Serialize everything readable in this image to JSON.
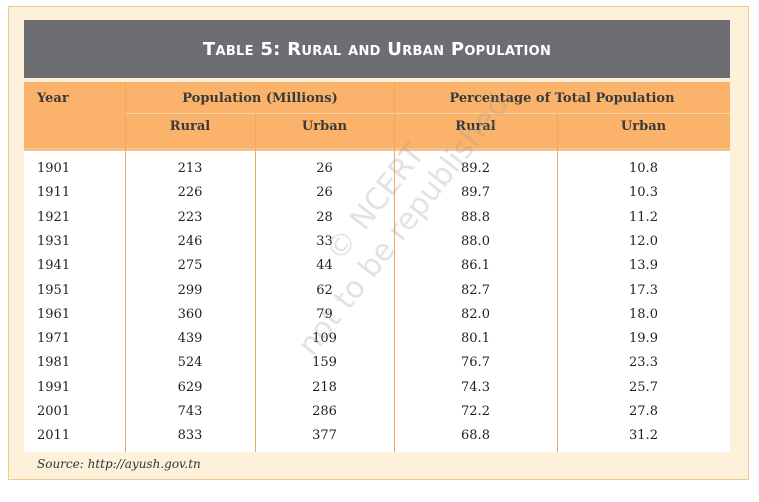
{
  "table": {
    "title": "Table 5: Rural and Urban Population",
    "headers": {
      "year": "Year",
      "population_group": "Population (Millions)",
      "percentage_group": "Percentage of Total Population",
      "pop_rural": "Rural",
      "pop_urban": "Urban",
      "pct_rural": "Rural",
      "pct_urban": "Urban"
    },
    "rows": [
      {
        "year": "1901",
        "pop_rural": "213",
        "pop_urban": "26",
        "pct_rural": "89.2",
        "pct_urban": "10.8"
      },
      {
        "year": "1911",
        "pop_rural": "226",
        "pop_urban": "26",
        "pct_rural": "89.7",
        "pct_urban": "10.3"
      },
      {
        "year": "1921",
        "pop_rural": "223",
        "pop_urban": "28",
        "pct_rural": "88.8",
        "pct_urban": "11.2"
      },
      {
        "year": "1931",
        "pop_rural": "246",
        "pop_urban": "33",
        "pct_rural": "88.0",
        "pct_urban": "12.0"
      },
      {
        "year": "1941",
        "pop_rural": "275",
        "pop_urban": "44",
        "pct_rural": "86.1",
        "pct_urban": "13.9"
      },
      {
        "year": "1951",
        "pop_rural": "299",
        "pop_urban": "62",
        "pct_rural": "82.7",
        "pct_urban": "17.3"
      },
      {
        "year": "1961",
        "pop_rural": "360",
        "pop_urban": "79",
        "pct_rural": "82.0",
        "pct_urban": "18.0"
      },
      {
        "year": "1971",
        "pop_rural": "439",
        "pop_urban": "109",
        "pct_rural": "80.1",
        "pct_urban": "19.9"
      },
      {
        "year": "1981",
        "pop_rural": "524",
        "pop_urban": "159",
        "pct_rural": "76.7",
        "pct_urban": "23.3"
      },
      {
        "year": "1991",
        "pop_rural": "629",
        "pop_urban": "218",
        "pct_rural": "74.3",
        "pct_urban": "25.7"
      },
      {
        "year": "2001",
        "pop_rural": "743",
        "pop_urban": "286",
        "pct_rural": "72.2",
        "pct_urban": "27.8"
      },
      {
        "year": "2011",
        "pop_rural": "833",
        "pop_urban": "377",
        "pct_rural": "68.8",
        "pct_urban": "31.2"
      }
    ],
    "source": "Source: http://ayush.gov.tn",
    "watermark_lines": [
      "© NCERT",
      "not to be republished"
    ]
  },
  "colors": {
    "title_bg": "#6d6e71",
    "header_bg": "#fbb36b",
    "frame_bg": "#fdf1dc"
  }
}
